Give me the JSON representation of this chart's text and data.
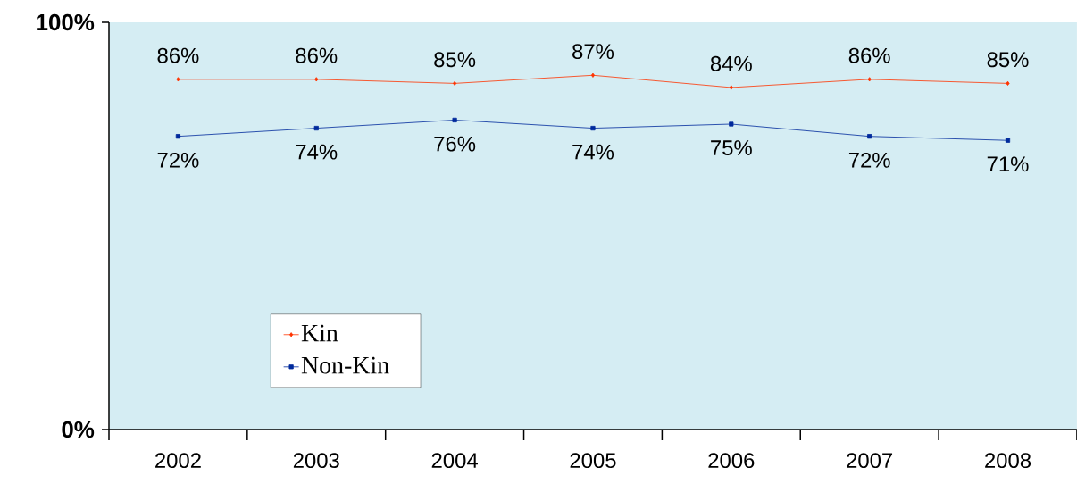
{
  "chart_data": {
    "type": "line",
    "categories": [
      "2002",
      "2003",
      "2004",
      "2005",
      "2006",
      "2007",
      "2008"
    ],
    "series": [
      {
        "name": "Kin",
        "color": "#ff3300",
        "marker": "diamond",
        "values": [
          86,
          86,
          85,
          87,
          84,
          86,
          85
        ],
        "value_labels": [
          "86%",
          "86%",
          "85%",
          "87%",
          "84%",
          "86%",
          "85%"
        ]
      },
      {
        "name": "Non-Kin",
        "color": "#002a9c",
        "marker": "square",
        "values": [
          72,
          74,
          76,
          74,
          75,
          72,
          71
        ],
        "value_labels": [
          "72%",
          "74%",
          "76%",
          "74%",
          "75%",
          "72%",
          "71%"
        ]
      }
    ],
    "ylim": [
      0,
      100
    ],
    "yticks": [
      {
        "value": 0,
        "label": "0%"
      },
      {
        "value": 100,
        "label": "100%"
      }
    ],
    "grid": false,
    "legend": "bottom left"
  }
}
